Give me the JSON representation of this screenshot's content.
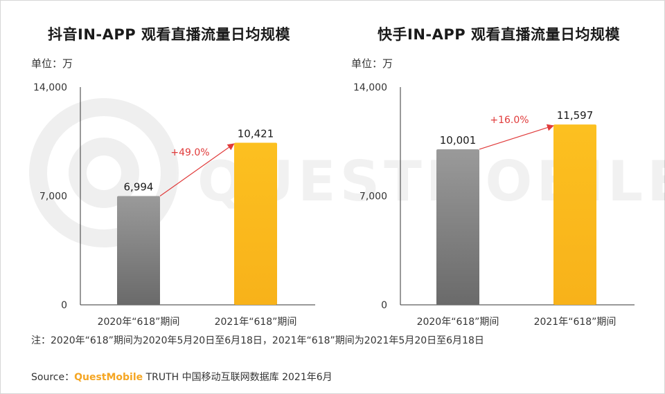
{
  "colors": {
    "bar_2020": "#7a7a7a",
    "bar_2021": "#fbb81a",
    "growth": "#e03a3a",
    "axis": "#333333",
    "brand": "#f5a623"
  },
  "watermark": "QUESTMOBILE",
  "charts": [
    {
      "title": "抖音IN-APP 观看直播流量日均规模",
      "unit": "单位：万"
    },
    {
      "title": "快手IN-APP 观看直播流量日均规模",
      "unit": "单位：万"
    }
  ],
  "chart_data": [
    {
      "type": "bar",
      "title": "抖音IN-APP 观看直播流量日均规模",
      "ylabel": "单位：万",
      "ylim": [
        0,
        14000
      ],
      "yticks": [
        0,
        7000,
        14000
      ],
      "ytick_labels": [
        "0",
        "7,000",
        "14,000"
      ],
      "categories": [
        "2020年“618”期间",
        "2021年“618”期间"
      ],
      "values": [
        6994,
        10421
      ],
      "value_labels": [
        "6,994",
        "10,421"
      ],
      "growth_label": "+49.0%",
      "grid": false
    },
    {
      "type": "bar",
      "title": "快手IN-APP 观看直播流量日均规模",
      "ylabel": "单位：万",
      "ylim": [
        0,
        14000
      ],
      "yticks": [
        0,
        7000,
        14000
      ],
      "ytick_labels": [
        "0",
        "7,000",
        "14,000"
      ],
      "categories": [
        "2020年“618”期间",
        "2021年“618”期间"
      ],
      "values": [
        10001,
        11597
      ],
      "value_labels": [
        "10,001",
        "11,597"
      ],
      "growth_label": "+16.0%",
      "grid": false
    }
  ],
  "footer": {
    "note": "注：2020年“618”期间为2020年5月20日至6月18日，2021年“618”期间为2021年5月20日至6月18日",
    "source_prefix": "Source：",
    "source_brand": "QuestMobile",
    "source_suffix": " TRUTH 中国移动互联网数据库 2021年6月"
  }
}
